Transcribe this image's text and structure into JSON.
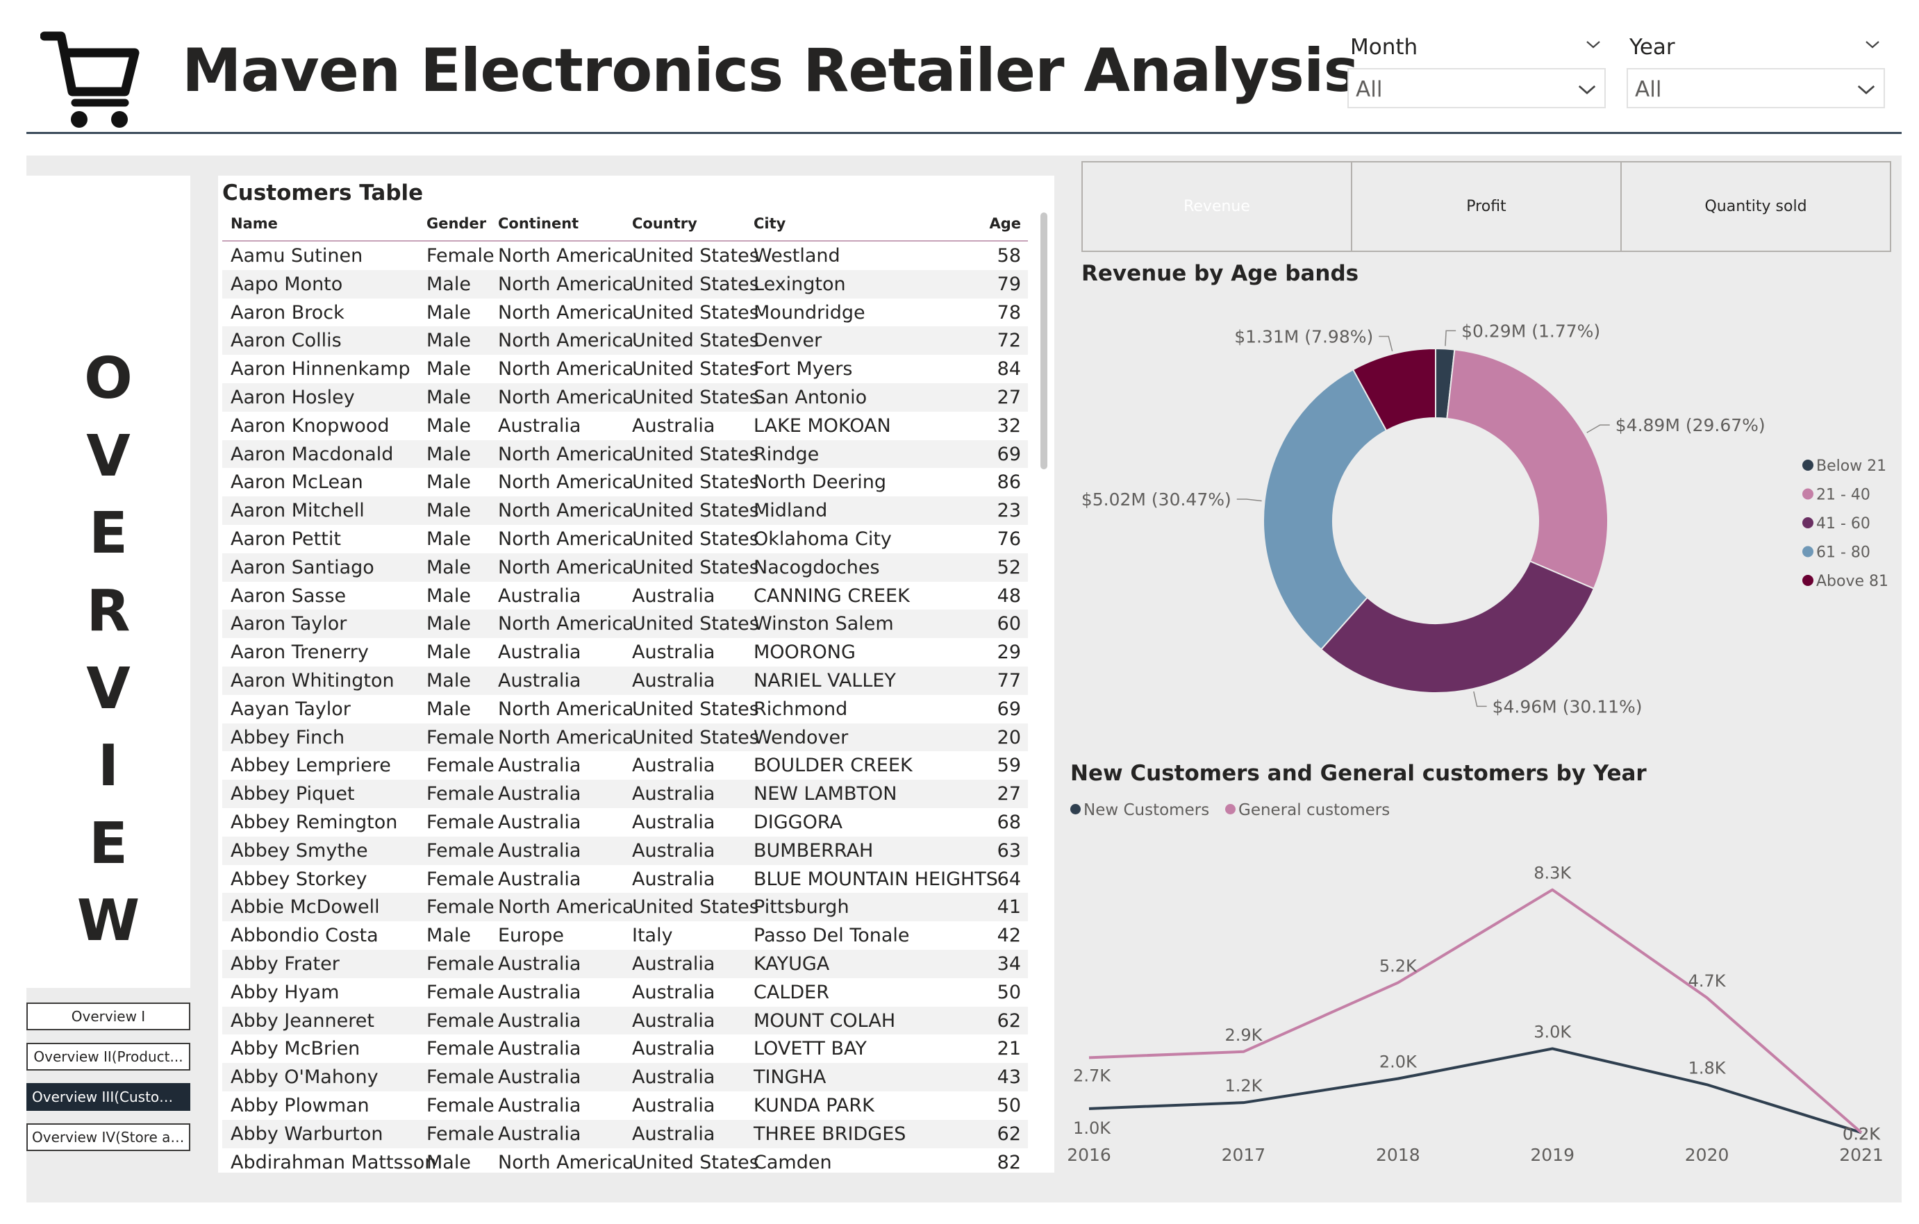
{
  "header": {
    "title": "Maven Electronics Retailer Analysis",
    "cart_icon": "shopping-cart-icon",
    "slicers": [
      {
        "label": "Month",
        "value": "All"
      },
      {
        "label": "Year",
        "value": "All"
      }
    ]
  },
  "nav": {
    "overview_letters": [
      "O",
      "V",
      "E",
      "R",
      "V",
      "I",
      "E",
      "W"
    ],
    "buttons": [
      {
        "label": "Overview I",
        "active": false
      },
      {
        "label": "Overview II(Product...",
        "active": false
      },
      {
        "label": "Overview III(Customer...",
        "active": true
      },
      {
        "label": "Overview IV(Store and...",
        "active": false
      }
    ]
  },
  "customers_table": {
    "title": "Customers Table",
    "columns": [
      "Name",
      "Gender",
      "Continent",
      "Country",
      "City",
      "Age"
    ],
    "rows": [
      [
        "Aamu Sutinen",
        "Female",
        "North America",
        "United States",
        "Westland",
        "58"
      ],
      [
        "Aapo Monto",
        "Male",
        "North America",
        "United States",
        "Lexington",
        "79"
      ],
      [
        "Aaron Brock",
        "Male",
        "North America",
        "United States",
        "Moundridge",
        "78"
      ],
      [
        "Aaron Collis",
        "Male",
        "North America",
        "United States",
        "Denver",
        "72"
      ],
      [
        "Aaron Hinnenkamp",
        "Male",
        "North America",
        "United States",
        "Fort Myers",
        "84"
      ],
      [
        "Aaron Hosley",
        "Male",
        "North America",
        "United States",
        "San Antonio",
        "27"
      ],
      [
        "Aaron Knopwood",
        "Male",
        "Australia",
        "Australia",
        "LAKE MOKOAN",
        "32"
      ],
      [
        "Aaron Macdonald",
        "Male",
        "North America",
        "United States",
        "Rindge",
        "69"
      ],
      [
        "Aaron McLean",
        "Male",
        "North America",
        "United States",
        "North Deering",
        "86"
      ],
      [
        "Aaron Mitchell",
        "Male",
        "North America",
        "United States",
        "Midland",
        "23"
      ],
      [
        "Aaron Pettit",
        "Male",
        "North America",
        "United States",
        "Oklahoma City",
        "76"
      ],
      [
        "Aaron Santiago",
        "Male",
        "North America",
        "United States",
        "Nacogdoches",
        "52"
      ],
      [
        "Aaron Sasse",
        "Male",
        "Australia",
        "Australia",
        "CANNING CREEK",
        "48"
      ],
      [
        "Aaron Taylor",
        "Male",
        "North America",
        "United States",
        "Winston Salem",
        "60"
      ],
      [
        "Aaron Trenerry",
        "Male",
        "Australia",
        "Australia",
        "MOORONG",
        "29"
      ],
      [
        "Aaron Whitington",
        "Male",
        "Australia",
        "Australia",
        "NARIEL VALLEY",
        "77"
      ],
      [
        "Aayan Taylor",
        "Male",
        "North America",
        "United States",
        "Richmond",
        "69"
      ],
      [
        "Abbey Finch",
        "Female",
        "North America",
        "United States",
        "Wendover",
        "20"
      ],
      [
        "Abbey Lempriere",
        "Female",
        "Australia",
        "Australia",
        "BOULDER CREEK",
        "59"
      ],
      [
        "Abbey Piquet",
        "Female",
        "Australia",
        "Australia",
        "NEW LAMBTON",
        "27"
      ],
      [
        "Abbey Remington",
        "Female",
        "Australia",
        "Australia",
        "DIGGORA",
        "68"
      ],
      [
        "Abbey Smythe",
        "Female",
        "Australia",
        "Australia",
        "BUMBERRAH",
        "63"
      ],
      [
        "Abbey Storkey",
        "Female",
        "Australia",
        "Australia",
        "BLUE MOUNTAIN HEIGHTS",
        "64"
      ],
      [
        "Abbie McDowell",
        "Female",
        "North America",
        "United States",
        "Pittsburgh",
        "41"
      ],
      [
        "Abbondio Costa",
        "Male",
        "Europe",
        "Italy",
        "Passo Del Tonale",
        "42"
      ],
      [
        "Abby Frater",
        "Female",
        "Australia",
        "Australia",
        "KAYUGA",
        "34"
      ],
      [
        "Abby Hyam",
        "Female",
        "Australia",
        "Australia",
        "CALDER",
        "50"
      ],
      [
        "Abby Jeanneret",
        "Female",
        "Australia",
        "Australia",
        "MOUNT COLAH",
        "62"
      ],
      [
        "Abby McBrien",
        "Female",
        "Australia",
        "Australia",
        "LOVETT BAY",
        "21"
      ],
      [
        "Abby O'Mahony",
        "Female",
        "Australia",
        "Australia",
        "TINGHA",
        "43"
      ],
      [
        "Abby Plowman",
        "Female",
        "Australia",
        "Australia",
        "KUNDA PARK",
        "50"
      ],
      [
        "Abby Warburton",
        "Female",
        "Australia",
        "Australia",
        "THREE BRIDGES",
        "62"
      ],
      [
        "Abdirahman Mattsson",
        "Male",
        "North America",
        "United States",
        "Camden",
        "82"
      ]
    ]
  },
  "metric_buttons": [
    {
      "label": "Revenue",
      "selected": true
    },
    {
      "label": "Profit",
      "selected": false
    },
    {
      "label": "Quantity sold",
      "selected": false
    }
  ],
  "chart_data": [
    {
      "type": "pie",
      "variant": "donut",
      "title": "Revenue by Age bands",
      "legend_position": "right",
      "slices": [
        {
          "name": "Below 21",
          "value": 0.29,
          "label": "$0.29M (1.77%)",
          "color": "#2f3f4f"
        },
        {
          "name": "21 - 40",
          "value": 4.89,
          "label": "$4.89M (29.67%)",
          "color": "#c47fa6"
        },
        {
          "name": "41 - 60",
          "value": 4.96,
          "label": "$4.96M (30.11%)",
          "color": "#6a2f62"
        },
        {
          "name": "61 - 80",
          "value": 5.02,
          "label": "$5.02M (30.47%)",
          "color": "#6f98b7"
        },
        {
          "name": "Above 81",
          "value": 1.31,
          "label": "$1.31M (7.98%)",
          "color": "#6a0032"
        }
      ]
    },
    {
      "type": "line",
      "title": "New Customers and General customers by Year",
      "legend_position": "top-left",
      "x": [
        "2016",
        "2017",
        "2018",
        "2019",
        "2020",
        "2021"
      ],
      "ylim": [
        0,
        8.8
      ],
      "series": [
        {
          "name": "New Customers",
          "color": "#2f3f4f",
          "values": [
            1.0,
            1.2,
            2.0,
            3.0,
            1.8,
            0.2
          ],
          "labels": [
            "1.0K",
            "1.2K",
            "2.0K",
            "3.0K",
            "1.8K",
            "0.2K"
          ]
        },
        {
          "name": "General customers",
          "color": "#c47fa6",
          "values": [
            2.7,
            2.9,
            5.2,
            8.3,
            4.7,
            0.2
          ],
          "labels": [
            "2.7K",
            "2.9K",
            "5.2K",
            "8.3K",
            "4.7K",
            "0.2K"
          ]
        }
      ]
    }
  ]
}
